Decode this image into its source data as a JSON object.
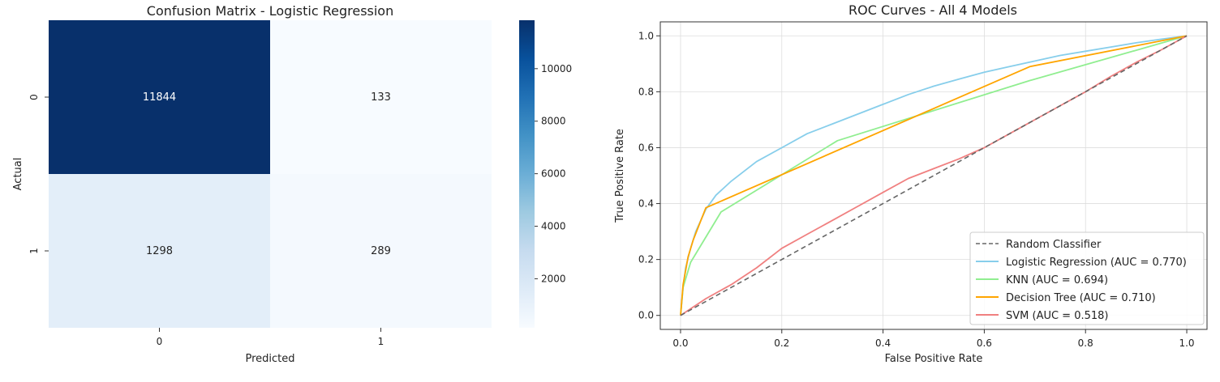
{
  "chart_data": [
    {
      "type": "heatmap",
      "title": "Confusion Matrix - Logistic Regression",
      "xlabel": "Predicted",
      "ylabel": "Actual",
      "x_categories": [
        "0",
        "1"
      ],
      "y_categories": [
        "0",
        "1"
      ],
      "values": [
        [
          11844,
          133
        ],
        [
          1298,
          289
        ]
      ],
      "colormap": "Blues",
      "colorbar": {
        "range": [
          133,
          11844
        ],
        "ticks": [
          2000,
          4000,
          6000,
          8000,
          10000
        ]
      }
    },
    {
      "type": "line",
      "title": "ROC Curves - All 4 Models",
      "xlabel": "False Positive Rate",
      "ylabel": "True Positive Rate",
      "xlim": [
        -0.04,
        1.04
      ],
      "ylim": [
        -0.05,
        1.05
      ],
      "xticks": [
        "0.0",
        "0.2",
        "0.4",
        "0.6",
        "0.8",
        "1.0"
      ],
      "yticks": [
        "0.0",
        "0.2",
        "0.4",
        "0.6",
        "0.8",
        "1.0"
      ],
      "grid": true,
      "legend_position": "bottom-right",
      "series": [
        {
          "name": "Random Classifier",
          "color": "#666666",
          "dashed": true,
          "points": [
            [
              0,
              0
            ],
            [
              1,
              1
            ]
          ]
        },
        {
          "name": "Logistic Regression (AUC = 0.770)",
          "color": "#87ceeb",
          "points": [
            [
              0,
              0
            ],
            [
              0.005,
              0.1
            ],
            [
              0.01,
              0.17
            ],
            [
              0.02,
              0.24
            ],
            [
              0.03,
              0.3
            ],
            [
              0.05,
              0.38
            ],
            [
              0.07,
              0.43
            ],
            [
              0.1,
              0.48
            ],
            [
              0.15,
              0.55
            ],
            [
              0.2,
              0.6
            ],
            [
              0.25,
              0.65
            ],
            [
              0.3,
              0.685
            ],
            [
              0.35,
              0.72
            ],
            [
              0.4,
              0.755
            ],
            [
              0.45,
              0.79
            ],
            [
              0.5,
              0.82
            ],
            [
              0.55,
              0.845
            ],
            [
              0.6,
              0.87
            ],
            [
              0.65,
              0.89
            ],
            [
              0.7,
              0.91
            ],
            [
              0.75,
              0.93
            ],
            [
              0.8,
              0.945
            ],
            [
              0.85,
              0.96
            ],
            [
              0.9,
              0.975
            ],
            [
              0.95,
              0.988
            ],
            [
              1,
              1
            ]
          ]
        },
        {
          "name": "KNN (AUC = 0.694)",
          "color": "#90ee90",
          "points": [
            [
              0,
              0
            ],
            [
              0.005,
              0.1
            ],
            [
              0.02,
              0.19
            ],
            [
              0.08,
              0.37
            ],
            [
              0.31,
              0.625
            ],
            [
              0.69,
              0.84
            ],
            [
              1,
              1
            ]
          ]
        },
        {
          "name": "Decision Tree (AUC = 0.710)",
          "color": "#ffa500",
          "points": [
            [
              0,
              0
            ],
            [
              0.005,
              0.11
            ],
            [
              0.015,
              0.21
            ],
            [
              0.025,
              0.27
            ],
            [
              0.05,
              0.385
            ],
            [
              0.69,
              0.89
            ],
            [
              1,
              1
            ]
          ]
        },
        {
          "name": "SVM (AUC = 0.518)",
          "color": "#f08080",
          "points": [
            [
              0,
              0
            ],
            [
              0.05,
              0.06
            ],
            [
              0.1,
              0.11
            ],
            [
              0.15,
              0.17
            ],
            [
              0.2,
              0.24
            ],
            [
              0.25,
              0.29
            ],
            [
              0.3,
              0.34
            ],
            [
              0.35,
              0.39
            ],
            [
              0.4,
              0.44
            ],
            [
              0.45,
              0.49
            ],
            [
              0.5,
              0.525
            ],
            [
              0.55,
              0.56
            ],
            [
              0.6,
              0.6
            ],
            [
              0.65,
              0.65
            ],
            [
              0.7,
              0.7
            ],
            [
              0.75,
              0.75
            ],
            [
              0.8,
              0.8
            ],
            [
              0.85,
              0.855
            ],
            [
              0.9,
              0.905
            ],
            [
              0.95,
              0.95
            ],
            [
              1,
              1
            ]
          ]
        }
      ]
    }
  ]
}
